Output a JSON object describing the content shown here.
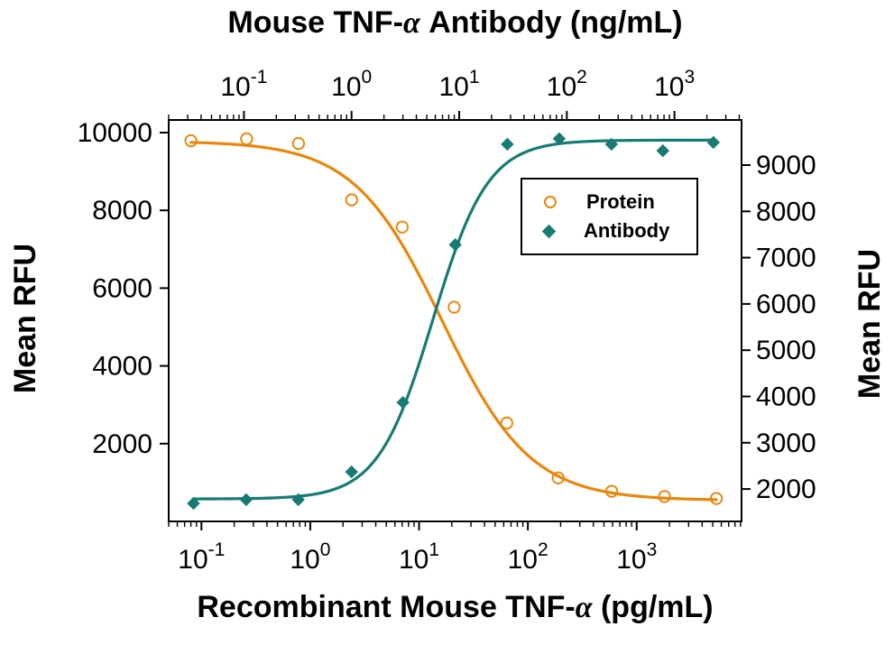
{
  "figure": {
    "top_axis_title": {
      "prefix": "Mouse TNF-",
      "alpha": "α",
      "suffix": " Antibody (ng/mL)"
    },
    "bottom_axis_title": {
      "prefix": "Recombinant Mouse TNF-",
      "alpha": "α",
      "suffix": " (pg/mL)"
    },
    "left_axis_title": "Mean RFU",
    "right_axis_title": "Mean RFU"
  },
  "legend": {
    "items": [
      {
        "label": "Protein",
        "marker": "open-circle",
        "color": "#E8860D"
      },
      {
        "label": "Antibody",
        "marker": "filled-diamond",
        "color": "#177B74"
      }
    ]
  },
  "chart_data": {
    "type": "scatter",
    "title": "",
    "axes": {
      "bottom": {
        "label": "Recombinant Mouse TNF-α (pg/mL)",
        "scale": "log",
        "range": [
          0.05,
          9200
        ],
        "major_tick_exponents": [
          -1,
          0,
          1,
          2,
          3
        ],
        "tick_label_format": "10^n"
      },
      "top": {
        "label": "Mouse TNF-α Antibody (ng/mL)",
        "scale": "log",
        "range": [
          0.02,
          4200
        ],
        "major_tick_exponents": [
          -1,
          0,
          1,
          2,
          3
        ],
        "tick_label_format": "10^n"
      },
      "left": {
        "label": "Mean RFU",
        "scale": "linear",
        "range": [
          0,
          10325
        ],
        "ticks": [
          2000,
          4000,
          6000,
          8000,
          10000
        ]
      },
      "right": {
        "label": "Mean RFU",
        "scale": "linear",
        "range": [
          1300,
          9975
        ],
        "ticks": [
          2000,
          3000,
          4000,
          5000,
          6000,
          7000,
          8000,
          9000
        ]
      }
    },
    "grid": false,
    "legend_position": "inside-upper-right",
    "series": [
      {
        "name": "Protein",
        "marker": "open-circle",
        "color": "#E8860D",
        "x_axis": "bottom",
        "y_axis": "left",
        "x": [
          0.08,
          0.26,
          0.78,
          2.4,
          7,
          21,
          64,
          190,
          590,
          1800,
          5400
        ],
        "y": [
          9790,
          9840,
          9720,
          8270,
          7570,
          5510,
          2530,
          1120,
          775,
          640,
          590
        ],
        "fit_curve": {
          "model": "4PL",
          "top": 9780,
          "bottom": 540,
          "ec50": 16.3,
          "hill": 1.07,
          "direction": "decreasing",
          "x_start": 0.08,
          "x_end": 5400
        }
      },
      {
        "name": "Antibody",
        "marker": "filled-diamond",
        "color": "#177B74",
        "x_axis": "top",
        "y_axis": "right",
        "x": [
          0.034,
          0.105,
          0.32,
          1.0,
          3.0,
          9.2,
          28,
          85,
          260,
          780,
          2300
        ],
        "y": [
          1690,
          1770,
          1770,
          2370,
          3870,
          7280,
          9450,
          9570,
          9450,
          9310,
          9490
        ],
        "fit_curve": {
          "model": "4PL",
          "top": 9540,
          "bottom": 1785,
          "ec50": 5.7,
          "hill": 1.7,
          "direction": "increasing",
          "x_start": 0.034,
          "x_end": 2300
        }
      }
    ]
  }
}
